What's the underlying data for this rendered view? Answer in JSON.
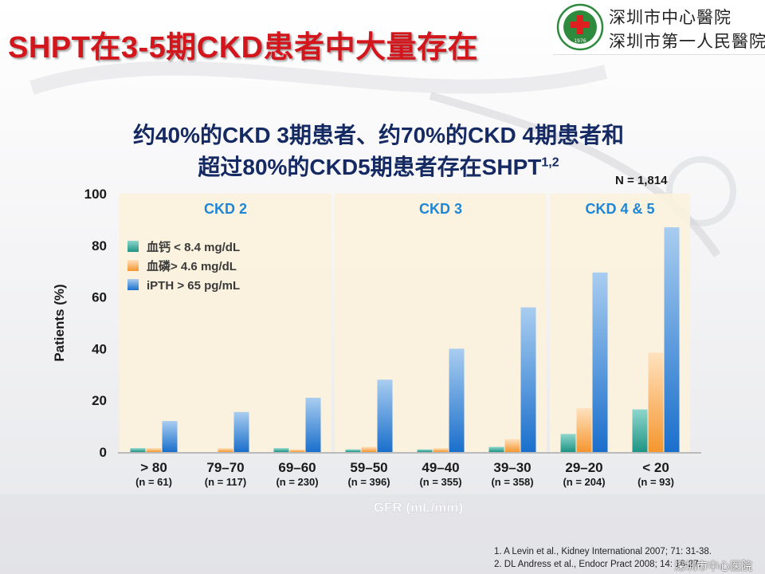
{
  "slide": {
    "title": "SHPT在3-5期CKD患者中大量存在",
    "headline_line1": "约40%的CKD 3期患者、约70%的CKD 4期患者和",
    "headline_line2": "超过80%的CKD5期患者存在SHPT",
    "headline_sup": "1,2",
    "n_total": "N = 1,814"
  },
  "logo": {
    "line1": "深圳市中心醫院",
    "line2": "深圳市第一人民醫院",
    "emblem_year": "1976"
  },
  "colors": {
    "title_red": "#d2161c",
    "headline_navy": "#152a63",
    "teal": "#2fa79a",
    "orange": "#f7a85a",
    "blue": "#2a7fd4",
    "panel_bg": "#fbf2dc",
    "stage_label": "#1e86d6"
  },
  "chart_data": {
    "type": "bar",
    "ylabel": "Patients (%)",
    "xlabel": "GFR (mL/min)",
    "ylim": [
      0,
      100
    ],
    "yticks": [
      0,
      20,
      40,
      60,
      80,
      100
    ],
    "categories": [
      "> 80",
      "79–70",
      "69–60",
      "59–50",
      "49–40",
      "39–30",
      "29–20",
      "< 20"
    ],
    "n_labels": [
      "(n = 61)",
      "(n = 117)",
      "(n = 230)",
      "(n = 396)",
      "(n = 355)",
      "(n = 358)",
      "(n = 204)",
      "(n = 93)"
    ],
    "stages": [
      {
        "label": "CKD 2",
        "from": 0,
        "to": 2
      },
      {
        "label": "CKD 3",
        "from": 3,
        "to": 5
      },
      {
        "label": "CKD 4 & 5",
        "from": 6,
        "to": 7
      }
    ],
    "series": [
      {
        "name": "血钙 < 8.4 mg/dL",
        "color": "#2fa79a",
        "values": [
          1.5,
          0,
          1.5,
          1,
          1,
          2,
          7,
          16.5
        ]
      },
      {
        "name": "血磷> 4.6 mg/dL",
        "color": "#f7a85a",
        "values": [
          1.5,
          1.5,
          1,
          2,
          1.5,
          5,
          17,
          38.5
        ]
      },
      {
        "name": "iPTH > 65 pg/mL",
        "color": "#2a7fd4",
        "values": [
          12,
          15.5,
          21,
          28,
          40,
          56,
          69.5,
          87
        ]
      }
    ],
    "legend_position": "top-left"
  },
  "references": [
    "1.    A Levin  et al., Kidney International 2007; 71: 31-38.",
    "2.    DL Andress et al., Endocr Pract 2008; 14: 18-27."
  ],
  "watermark": "深圳市中心医院"
}
